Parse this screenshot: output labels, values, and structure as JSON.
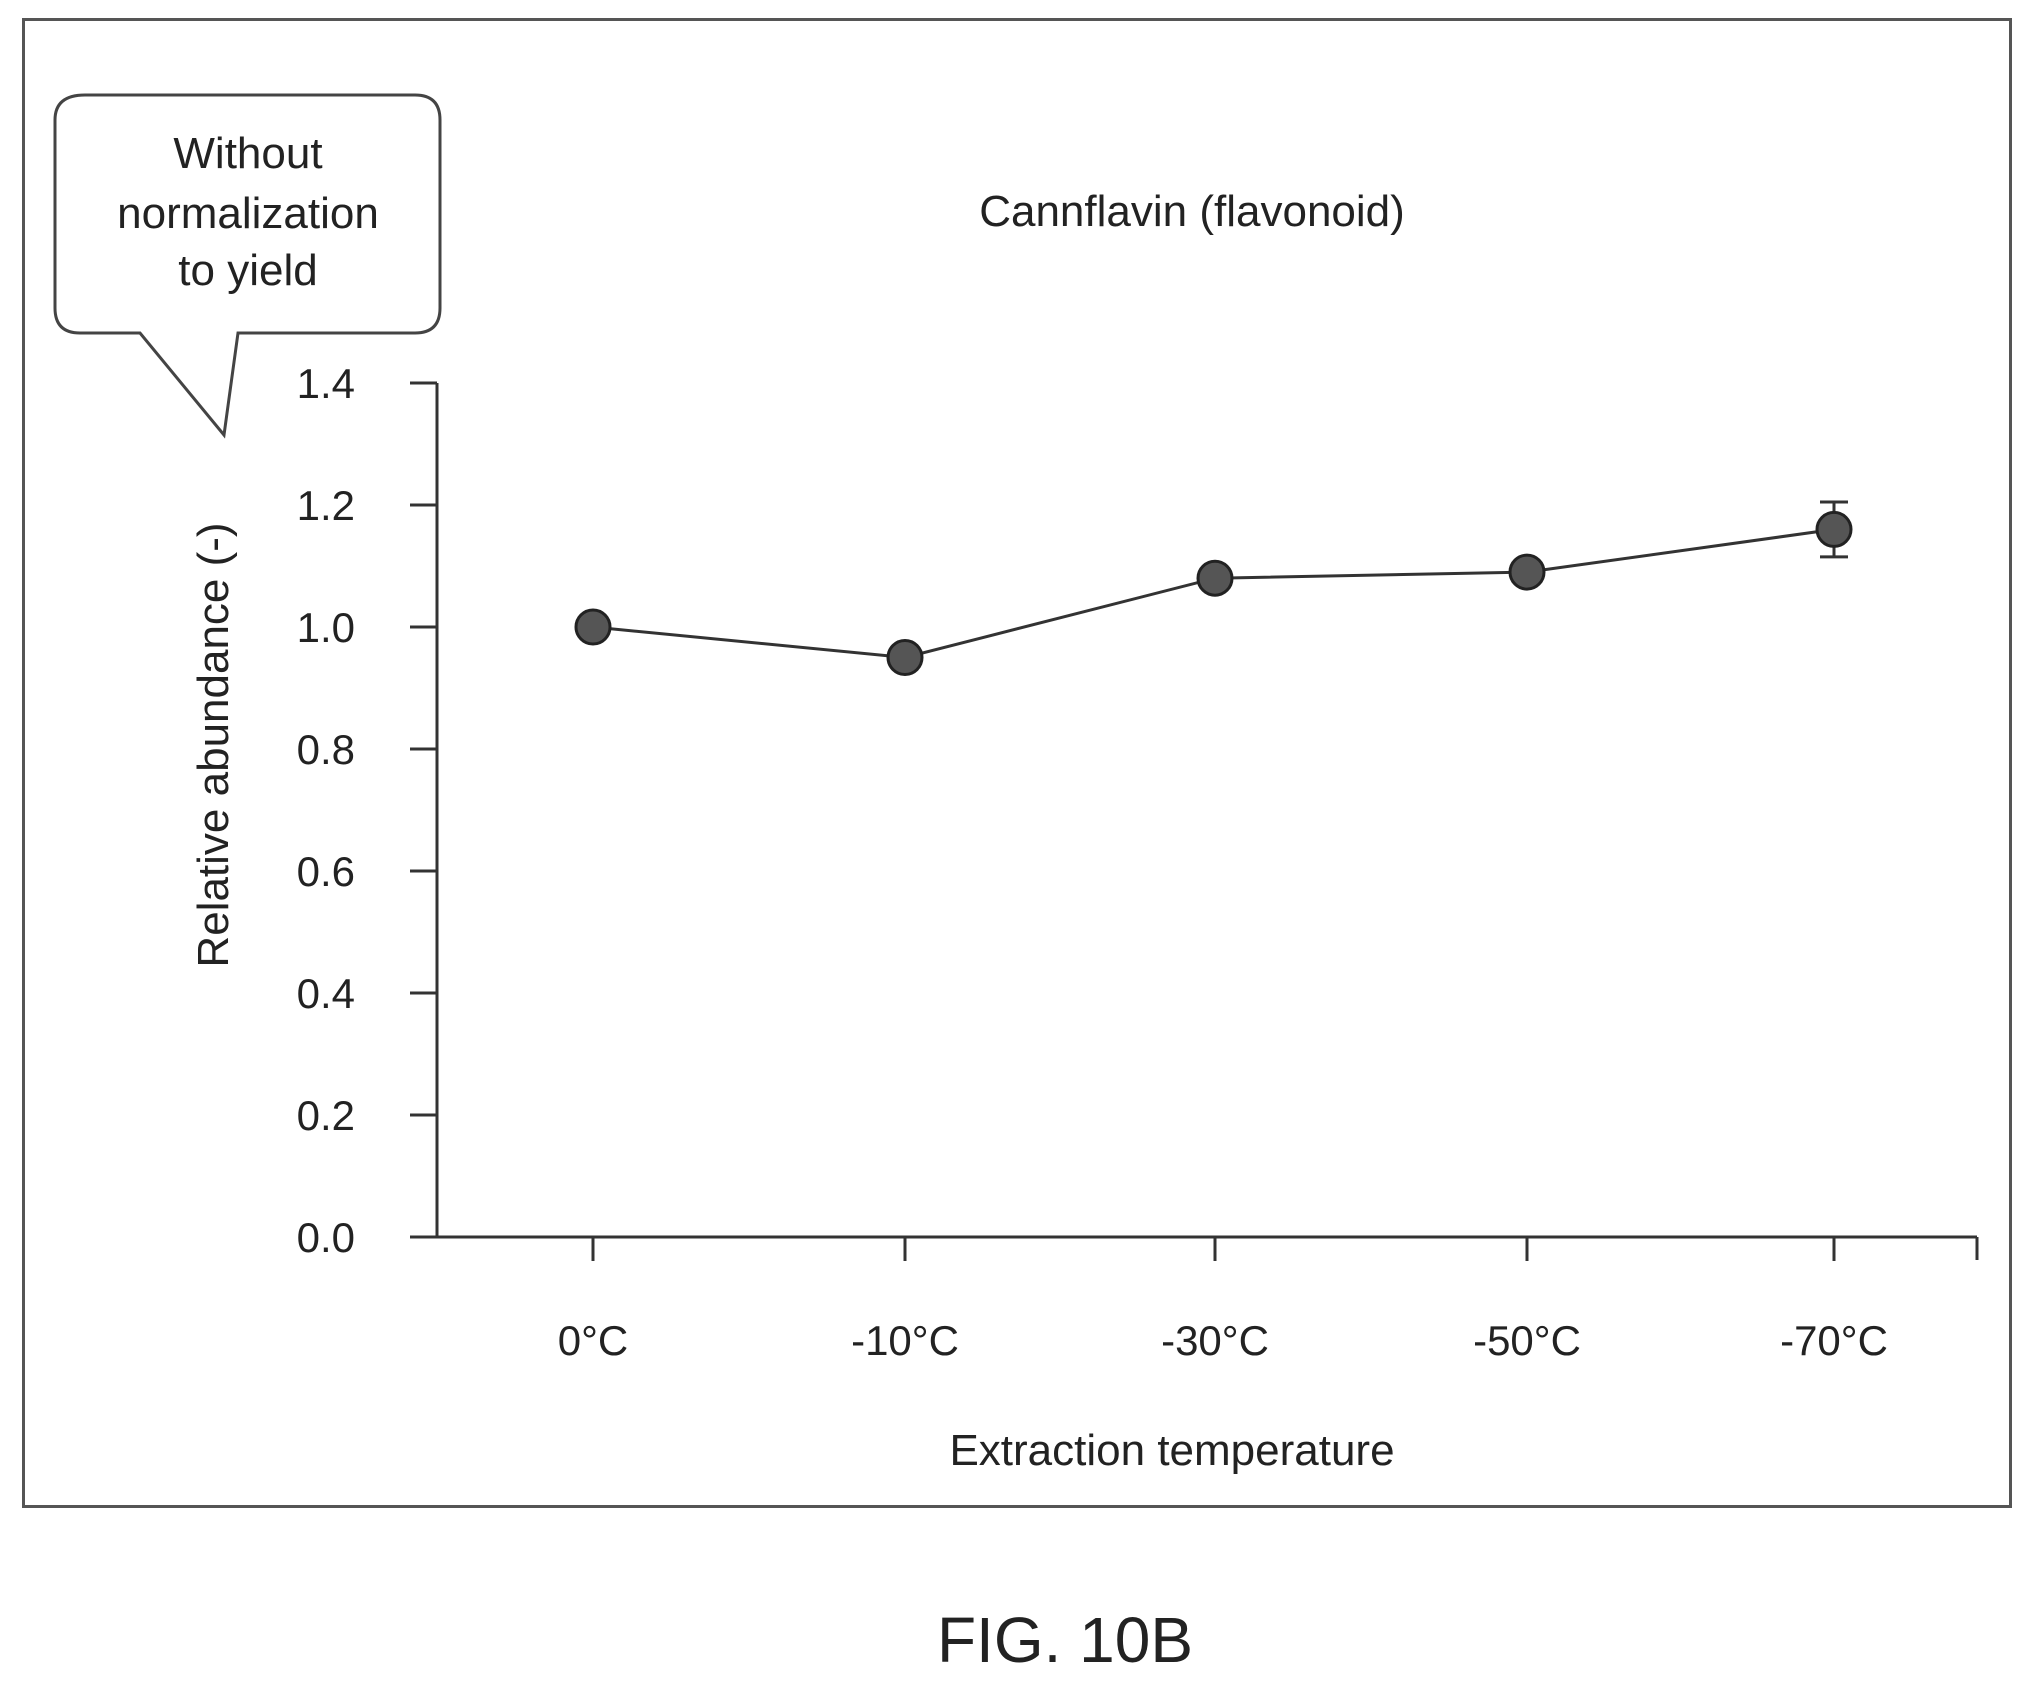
{
  "figure_label": "FIG. 10B",
  "callout": {
    "lines": [
      "Without",
      "normalization",
      "to yield"
    ]
  },
  "chart_data": {
    "type": "line",
    "title": "Cannflavin (flavonoid)",
    "xlabel": "Extraction temperature",
    "ylabel": "Relative abundance (-)",
    "categories": [
      "0°C",
      "-10°C",
      "-30°C",
      "-50°C",
      "-70°C"
    ],
    "series": [
      {
        "values": [
          1.0,
          0.95,
          1.08,
          1.09,
          1.16
        ],
        "errors": [
          0.0,
          0.0,
          0.0,
          0.0,
          0.045
        ]
      }
    ],
    "ylim": [
      0.0,
      1.4
    ],
    "yticks": [
      "0.0",
      "0.2",
      "0.4",
      "0.6",
      "0.8",
      "1.0",
      "1.2",
      "1.4"
    ],
    "grid": false,
    "legend": "none",
    "marker_color": "#555555",
    "line_color": "#333333"
  }
}
